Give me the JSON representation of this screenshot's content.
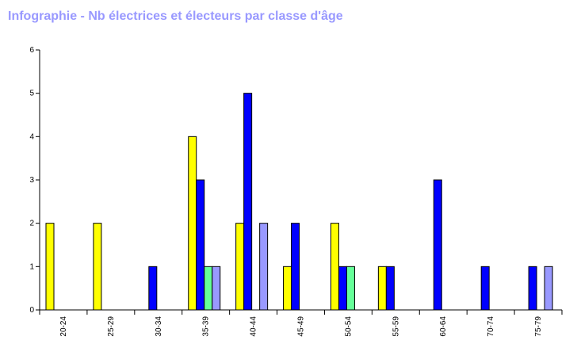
{
  "chart_data": {
    "type": "bar",
    "title": "Infographie - Nb électrices et électeurs par classe d'âge",
    "categories": [
      "20-24",
      "25-29",
      "30-34",
      "35-39",
      "40-44",
      "45-49",
      "50-54",
      "55-59",
      "60-64",
      "70-74",
      "75-79"
    ],
    "series": [
      {
        "color": "#ffff00",
        "values": [
          2,
          2,
          0,
          4,
          2,
          1,
          2,
          1,
          0,
          0,
          0
        ]
      },
      {
        "color": "#0000ff",
        "values": [
          0,
          0,
          1,
          3,
          5,
          2,
          1,
          1,
          3,
          1,
          1
        ]
      },
      {
        "color": "#66ff99",
        "values": [
          0,
          0,
          0,
          1,
          0,
          0,
          1,
          0,
          0,
          0,
          0
        ]
      },
      {
        "color": "#9999ff",
        "values": [
          0,
          0,
          0,
          1,
          2,
          0,
          0,
          0,
          0,
          0,
          1
        ]
      }
    ],
    "y_ticks": [
      "0",
      "1",
      "2",
      "3",
      "4",
      "5",
      "6"
    ],
    "ylim": [
      0,
      6
    ],
    "grid": false,
    "legend": "none"
  }
}
